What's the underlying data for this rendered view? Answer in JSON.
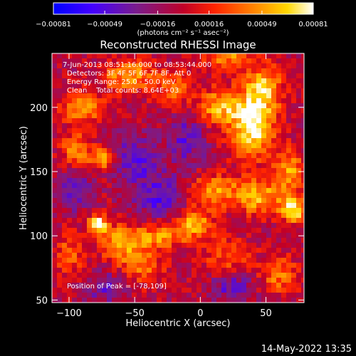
{
  "chart_data": {
    "type": "heatmap",
    "title": "Reconstructed RHESSI Image",
    "xlabel": "Heliocentric X (arcsec)",
    "ylabel": "Heliocentric Y (arcsec)",
    "xlim": [
      -113,
      79
    ],
    "ylim": [
      48,
      242
    ],
    "x_ticks": [
      -100,
      -50,
      0,
      50
    ],
    "x_tick_labels": [
      "−100",
      "−50",
      "0",
      "50"
    ],
    "y_ticks": [
      50,
      100,
      150,
      200
    ],
    "y_tick_labels": [
      "50",
      "100",
      "150",
      "200"
    ],
    "colorbar": {
      "min": -0.00081,
      "max": 0.00081,
      "ticks": [
        -0.00081,
        -0.00049,
        -0.00016,
        0.00016,
        0.00049,
        0.00081
      ],
      "tick_labels": [
        "−0.00081",
        "−0.00049",
        "−0.00016",
        "0.00016",
        "0.00049",
        "0.00081"
      ],
      "units": "(photons cm⁻² s⁻¹ asec⁻²)"
    },
    "colormap": [
      "#0000ff",
      "#5a00ff",
      "#3a1090",
      "#7a1c8c",
      "#c00028",
      "#ff2400",
      "#ff8a00",
      "#ffd800",
      "#ffffff"
    ],
    "peak_position": [
      -78,
      109
    ],
    "annotations": {
      "time_range": "7-Jun-2013 08:51:16.000 to 08:53:44.000",
      "detectors": "Detectors: 3F 4F 5F 6F 7F 8F, Att 0",
      "energy": "Energy Range: 25.0 - 50.0 keV",
      "clean": "Clean    Total counts: 8.64E+03",
      "peak": "Position of Peak = [-78,109]"
    },
    "grid": false,
    "legend": "colorbar-top",
    "hot_spots": [
      {
        "x": 40,
        "y": 185,
        "amp": 0.0009,
        "sx": 11,
        "sy": 16
      },
      {
        "x": 15,
        "y": 200,
        "amp": 0.0006,
        "sx": 12,
        "sy": 10
      },
      {
        "x": 48,
        "y": 215,
        "amp": 0.00065,
        "sx": 10,
        "sy": 12
      },
      {
        "x": 68,
        "y": 150,
        "amp": 0.00055,
        "sx": 8,
        "sy": 12
      },
      {
        "x": 72,
        "y": 120,
        "amp": 0.00075,
        "sx": 7,
        "sy": 7
      },
      {
        "x": 45,
        "y": 130,
        "amp": 0.0006,
        "sx": 13,
        "sy": 10
      },
      {
        "x": 10,
        "y": 135,
        "amp": 0.0005,
        "sx": 14,
        "sy": 9
      },
      {
        "x": -5,
        "y": 110,
        "amp": 0.0006,
        "sx": 10,
        "sy": 8
      },
      {
        "x": -30,
        "y": 100,
        "amp": 0.0005,
        "sx": 13,
        "sy": 7
      },
      {
        "x": -60,
        "y": 95,
        "amp": 0.0006,
        "sx": 12,
        "sy": 9
      },
      {
        "x": -78,
        "y": 109,
        "amp": 0.00085,
        "sx": 5,
        "sy": 5
      },
      {
        "x": -75,
        "y": 160,
        "amp": 0.0006,
        "sx": 7,
        "sy": 6
      },
      {
        "x": -95,
        "y": 168,
        "amp": 0.00055,
        "sx": 7,
        "sy": 8
      },
      {
        "x": -90,
        "y": 200,
        "amp": 0.00055,
        "sx": 11,
        "sy": 9
      },
      {
        "x": -55,
        "y": 225,
        "amp": 0.00055,
        "sx": 14,
        "sy": 9
      },
      {
        "x": -20,
        "y": 215,
        "amp": 0.0004,
        "sx": 10,
        "sy": 9
      },
      {
        "x": 20,
        "y": 240,
        "amp": 0.0005,
        "sx": 12,
        "sy": 8
      },
      {
        "x": -45,
        "y": 75,
        "amp": 0.0004,
        "sx": 12,
        "sy": 10
      },
      {
        "x": 60,
        "y": 70,
        "amp": 0.00045,
        "sx": 10,
        "sy": 10
      },
      {
        "x": 20,
        "y": 85,
        "amp": 0.00035,
        "sx": 12,
        "sy": 10
      },
      {
        "x": -100,
        "y": 85,
        "amp": 0.00035,
        "sx": 8,
        "sy": 12
      }
    ],
    "cold_spots": [
      {
        "x": -30,
        "y": 130,
        "amp": -0.00045,
        "sx": 14,
        "sy": 12
      },
      {
        "x": -50,
        "y": 160,
        "amp": -0.0004,
        "sx": 12,
        "sy": 12
      },
      {
        "x": -10,
        "y": 175,
        "amp": -0.00035,
        "sx": 10,
        "sy": 14
      },
      {
        "x": 25,
        "y": 60,
        "amp": -0.00035,
        "sx": 12,
        "sy": 8
      },
      {
        "x": -95,
        "y": 135,
        "amp": -0.0004,
        "sx": 8,
        "sy": 10
      },
      {
        "x": -70,
        "y": 60,
        "amp": -0.00035,
        "sx": 12,
        "sy": 8
      }
    ]
  },
  "footer": "14-May-2022 13:35"
}
